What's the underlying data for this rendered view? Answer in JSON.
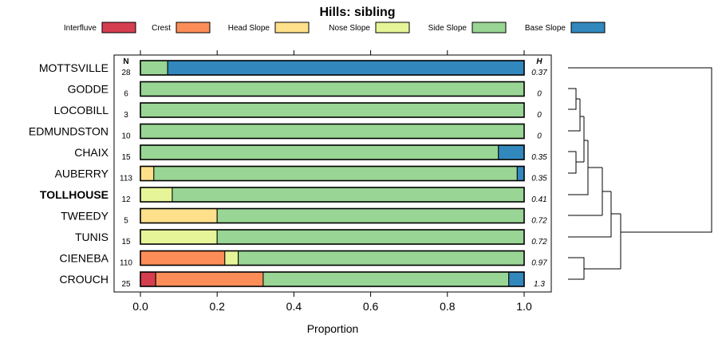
{
  "chart_data": {
    "type": "bar",
    "orientation": "horizontal",
    "stacked": true,
    "title": "Hills: sibling",
    "xlabel": "Proportion",
    "ylabel": "",
    "xlim": [
      0,
      1
    ],
    "x_ticks": [
      "0.0",
      "0.2",
      "0.4",
      "0.6",
      "0.8",
      "1.0"
    ],
    "x_tick_values": [
      0,
      0.2,
      0.4,
      0.6,
      0.8,
      1.0
    ],
    "legend_position": "top",
    "n_header": "N",
    "h_header": "H",
    "categories": [
      "MOTTSVILLE",
      "GODDE",
      "LOCOBILL",
      "EDMUNDSTON",
      "CHAIX",
      "AUBERRY",
      "TOLLHOUSE",
      "TWEEDY",
      "TUNIS",
      "CIENEBA",
      "CROUCH"
    ],
    "highlighted_category": "TOLLHOUSE",
    "n_values": [
      "28",
      "6",
      "3",
      "10",
      "15",
      "113",
      "12",
      "5",
      "15",
      "110",
      "25"
    ],
    "h_values": [
      "0.37",
      "0",
      "0",
      "0",
      "0.35",
      "0.35",
      "0.41",
      "0.72",
      "0.72",
      "0.97",
      "1.3"
    ],
    "series": [
      {
        "name": "Interfluve",
        "color": "#d53e4f",
        "values": [
          0,
          0,
          0,
          0,
          0,
          0,
          0,
          0,
          0,
          0,
          0.04
        ]
      },
      {
        "name": "Crest",
        "color": "#fc8d59",
        "values": [
          0,
          0,
          0,
          0,
          0,
          0,
          0,
          0,
          0,
          0.22,
          0.28
        ]
      },
      {
        "name": "Head Slope",
        "color": "#fee08b",
        "values": [
          0,
          0,
          0,
          0,
          0,
          0.035,
          0,
          0.2,
          0,
          0,
          0
        ]
      },
      {
        "name": "Nose Slope",
        "color": "#e6f598",
        "values": [
          0,
          0,
          0,
          0,
          0,
          0,
          0.083,
          0,
          0.2,
          0.035,
          0
        ]
      },
      {
        "name": "Side Slope",
        "color": "#99d594",
        "values": [
          0.071,
          1,
          1,
          1,
          0.933,
          0.947,
          0.917,
          0.8,
          0.8,
          0.745,
          0.64
        ]
      },
      {
        "name": "Base Slope",
        "color": "#3288bd",
        "values": [
          0.929,
          0,
          0,
          0,
          0.067,
          0.018,
          0,
          0,
          0,
          0,
          0.04
        ]
      }
    ],
    "dendrogram": "hierarchical clustering of the series on the right side"
  }
}
